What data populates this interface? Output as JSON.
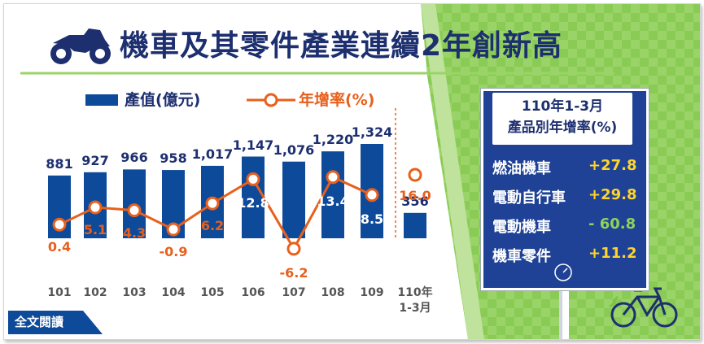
{
  "title": "機車及其零件產業連續2年創新高",
  "legend": {
    "bar": "產值(億元)",
    "line": "年增率(%)"
  },
  "chart_data": {
    "type": "bar",
    "categories": [
      "101",
      "102",
      "103",
      "104",
      "105",
      "106",
      "107",
      "108",
      "109",
      "110年\n1-3月"
    ],
    "series": [
      {
        "name": "產值(億元)",
        "type": "bar",
        "values": [
          881,
          927,
          966,
          958,
          1017,
          1147,
          1076,
          1220,
          1324,
          356
        ],
        "labels": [
          "881",
          "927",
          "966",
          "958",
          "1,017",
          "1,147",
          "1,076",
          "1,220",
          "1,324",
          "356"
        ]
      },
      {
        "name": "年增率(%)",
        "type": "line",
        "values": [
          0.4,
          5.1,
          4.3,
          -0.9,
          6.2,
          12.8,
          -6.2,
          13.4,
          8.5,
          16.0
        ],
        "labels": [
          "0.4",
          "5.1",
          "4.3",
          "-0.9",
          "6.2",
          "12.8",
          "-6.2",
          "13.4",
          "8.5",
          "16.0"
        ]
      }
    ],
    "colors": {
      "bar": "#0d4a9a",
      "line": "#e8601c"
    }
  },
  "panel": {
    "title_line1": "110年1-3月",
    "title_line2": "產品別年增率(%)",
    "rows": [
      {
        "label": "燃油機車",
        "value": "+27.8"
      },
      {
        "label": "電動自行車",
        "value": "+29.8"
      },
      {
        "label": "電動機車",
        "value": "- 60.8"
      },
      {
        "label": "機車零件",
        "value": "+11.2"
      }
    ]
  },
  "read_button": "全文閱讀",
  "icons": {
    "title_icon": "motorcycle-icon",
    "corner_icon": "bicycle-icon",
    "panel_icon": "speedometer-icon"
  },
  "colors": {
    "navy": "#1d2f6f",
    "accent": "#e8601c",
    "panel": "#1f4296",
    "panel_value": "#ffd42a",
    "green": "#7ec24a"
  }
}
